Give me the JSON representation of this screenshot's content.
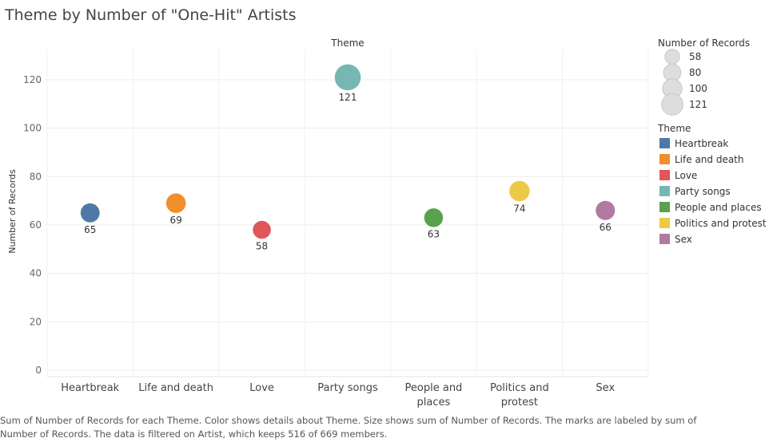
{
  "chart_data": {
    "type": "scatter",
    "title": "Theme by Number of \"One-Hit\" Artists",
    "column_header": "Theme",
    "ylabel": "Number of Records",
    "ylim": [
      0,
      130
    ],
    "yticks": [
      0,
      20,
      40,
      60,
      80,
      100,
      120
    ],
    "grid": true,
    "categories": [
      {
        "name": "Heartbreak",
        "lines": [
          "Heartbreak"
        ],
        "value": 65,
        "label": "65",
        "color": "#4e79a7"
      },
      {
        "name": "Life and death",
        "lines": [
          "Life and death"
        ],
        "value": 69,
        "label": "69",
        "color": "#f28e2b"
      },
      {
        "name": "Love",
        "lines": [
          "Love"
        ],
        "value": 58,
        "label": "58",
        "color": "#e15759"
      },
      {
        "name": "Party songs",
        "lines": [
          "Party songs"
        ],
        "value": 121,
        "label": "121",
        "color": "#76b7b2"
      },
      {
        "name": "People and places",
        "lines": [
          "People and",
          "places"
        ],
        "value": 63,
        "label": "63",
        "color": "#59a14f"
      },
      {
        "name": "Politics and protest",
        "lines": [
          "Politics and",
          "protest"
        ],
        "value": 74,
        "label": "74",
        "color": "#edc948"
      },
      {
        "name": "Sex",
        "lines": [
          "Sex"
        ],
        "value": 66,
        "label": "66",
        "color": "#b07aa1"
      }
    ],
    "size_legend": {
      "title": "Number of Records",
      "items": [
        58,
        80,
        100,
        121
      ],
      "labels": [
        "58",
        "80",
        "100",
        "121"
      ]
    },
    "color_legend": {
      "title": "Theme",
      "placement": "right"
    }
  },
  "caption": "Sum of Number of Records for each Theme.  Color shows details about Theme.  Size shows sum of Number of Records.  The marks are labeled by sum of Number of Records. The data is filtered on Artist, which keeps 516 of 669 members."
}
